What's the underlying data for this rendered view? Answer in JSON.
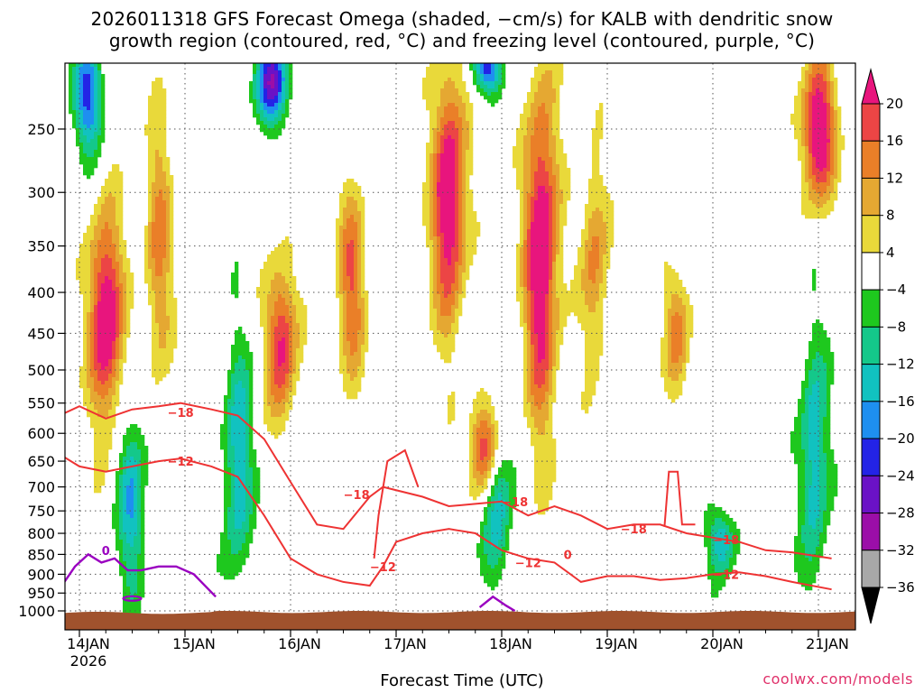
{
  "title_line1": "2026011318 GFS Forecast Omega (shaded, −cm/s) for KALB with dendritic snow",
  "title_line2": "growth region (contoured, red, °C) and freezing level (contoured, purple, °C)",
  "credit": "coolwx.com/models",
  "chart_data": {
    "type": "heatmap",
    "title": "2026011318 GFS Forecast Omega (shaded, −cm/s) for KALB with dendritic snow growth region (contoured, red, °C) and freezing level (contoured, purple, °C)",
    "xlabel": "Forecast Time (UTC)",
    "ylabel": "",
    "x_ticks": [
      "14JAN",
      "15JAN",
      "16JAN",
      "17JAN",
      "18JAN",
      "19JAN",
      "20JAN",
      "21JAN"
    ],
    "x_tick_year": "2026",
    "xlim": [
      "2026-01-13T18",
      "2026-01-21T03"
    ],
    "y_ticks": [
      250,
      300,
      350,
      400,
      450,
      500,
      550,
      600,
      650,
      700,
      750,
      800,
      850,
      900,
      950,
      1000
    ],
    "ylim": [
      200,
      1010
    ],
    "y_scale": "log-pressure",
    "grid": true,
    "colorbar": {
      "levels": [
        -36,
        -32,
        -28,
        -24,
        -20,
        -16,
        -12,
        -8,
        -4,
        4,
        8,
        12,
        16,
        20
      ],
      "tick_labels": [
        "−36",
        "−32",
        "−28",
        "−24",
        "−20",
        "−16",
        "−12",
        "−8",
        "−4",
        "4",
        "8",
        "12",
        "16",
        "20"
      ],
      "colors": [
        "#000000",
        "#a8a8a8",
        "#9b0ea8",
        "#6a12c6",
        "#2323e6",
        "#1e8ff0",
        "#11c2c0",
        "#14c88a",
        "#1ec81e",
        "#ffffff",
        "#e9d93a",
        "#e5a832",
        "#ea7f28",
        "#ec4545",
        "#e8157d"
      ]
    },
    "omega_cores": [
      {
        "time": "2026-01-14T06",
        "p_top": 330,
        "p_bot": 560,
        "value": 20
      },
      {
        "time": "2026-01-14T18",
        "p_top": 250,
        "p_bot": 500,
        "value": 10
      },
      {
        "time": "2026-01-15T22",
        "p_top": 380,
        "p_bot": 560,
        "value": 16
      },
      {
        "time": "2026-01-16T14",
        "p_top": 300,
        "p_bot": 500,
        "value": 12
      },
      {
        "time": "2026-01-17T12",
        "p_top": 220,
        "p_bot": 420,
        "value": 20
      },
      {
        "time": "2026-01-17T20",
        "p_top": 560,
        "p_bot": 700,
        "value": 16
      },
      {
        "time": "2026-01-18T09",
        "p_top": 230,
        "p_bot": 560,
        "value": 20
      },
      {
        "time": "2026-01-18T21",
        "p_top": 280,
        "p_bot": 480,
        "value": 10
      },
      {
        "time": "2026-01-19T16",
        "p_top": 380,
        "p_bot": 520,
        "value": 10
      },
      {
        "time": "2026-01-21T00",
        "p_top": 210,
        "p_bot": 300,
        "value": 20
      },
      {
        "time": "2026-01-14T02",
        "p_top": 200,
        "p_bot": 260,
        "value": -16
      },
      {
        "time": "2026-01-15T20",
        "p_top": 200,
        "p_bot": 240,
        "value": -20
      },
      {
        "time": "2026-01-17T21",
        "p_top": 200,
        "p_bot": 220,
        "value": -16
      },
      {
        "time": "2026-01-14T12",
        "p_top": 580,
        "p_bot": 930,
        "value": -12
      },
      {
        "time": "2026-01-15T12",
        "p_top": 480,
        "p_bot": 900,
        "value": -12
      },
      {
        "time": "2026-01-17T23",
        "p_top": 600,
        "p_bot": 900,
        "value": -12
      },
      {
        "time": "2026-01-20T02",
        "p_top": 760,
        "p_bot": 880,
        "value": -12
      },
      {
        "time": "2026-01-20T23",
        "p_top": 460,
        "p_bot": 900,
        "value": -12
      }
    ],
    "contours": {
      "dendritic_red": [
        {
          "label": "−18",
          "label_time": "2026-01-14T23",
          "label_p": 565
        },
        {
          "label": "−12",
          "label_time": "2026-01-14T23",
          "label_p": 650
        },
        {
          "label": "−18",
          "label_time": "2026-01-16T15",
          "label_p": 715
        },
        {
          "label": "−12",
          "label_time": "2026-01-16T21",
          "label_p": 880
        },
        {
          "label": "−18",
          "label_time": "2026-01-18T03",
          "label_p": 730
        },
        {
          "label": "−12",
          "label_time": "2026-01-18T06",
          "label_p": 870
        },
        {
          "label": "0",
          "label_time": "2026-01-18T15",
          "label_p": 850
        },
        {
          "label": "−18",
          "label_time": "2026-01-19T06",
          "label_p": 790
        },
        {
          "label": "−18",
          "label_time": "2026-01-20T03",
          "label_p": 815
        },
        {
          "label": "−12",
          "label_time": "2026-01-20T03",
          "label_p": 900
        }
      ],
      "freezing_purple": [
        {
          "label": "0",
          "label_time": "2026-01-14T06",
          "label_p": 840
        }
      ]
    }
  }
}
